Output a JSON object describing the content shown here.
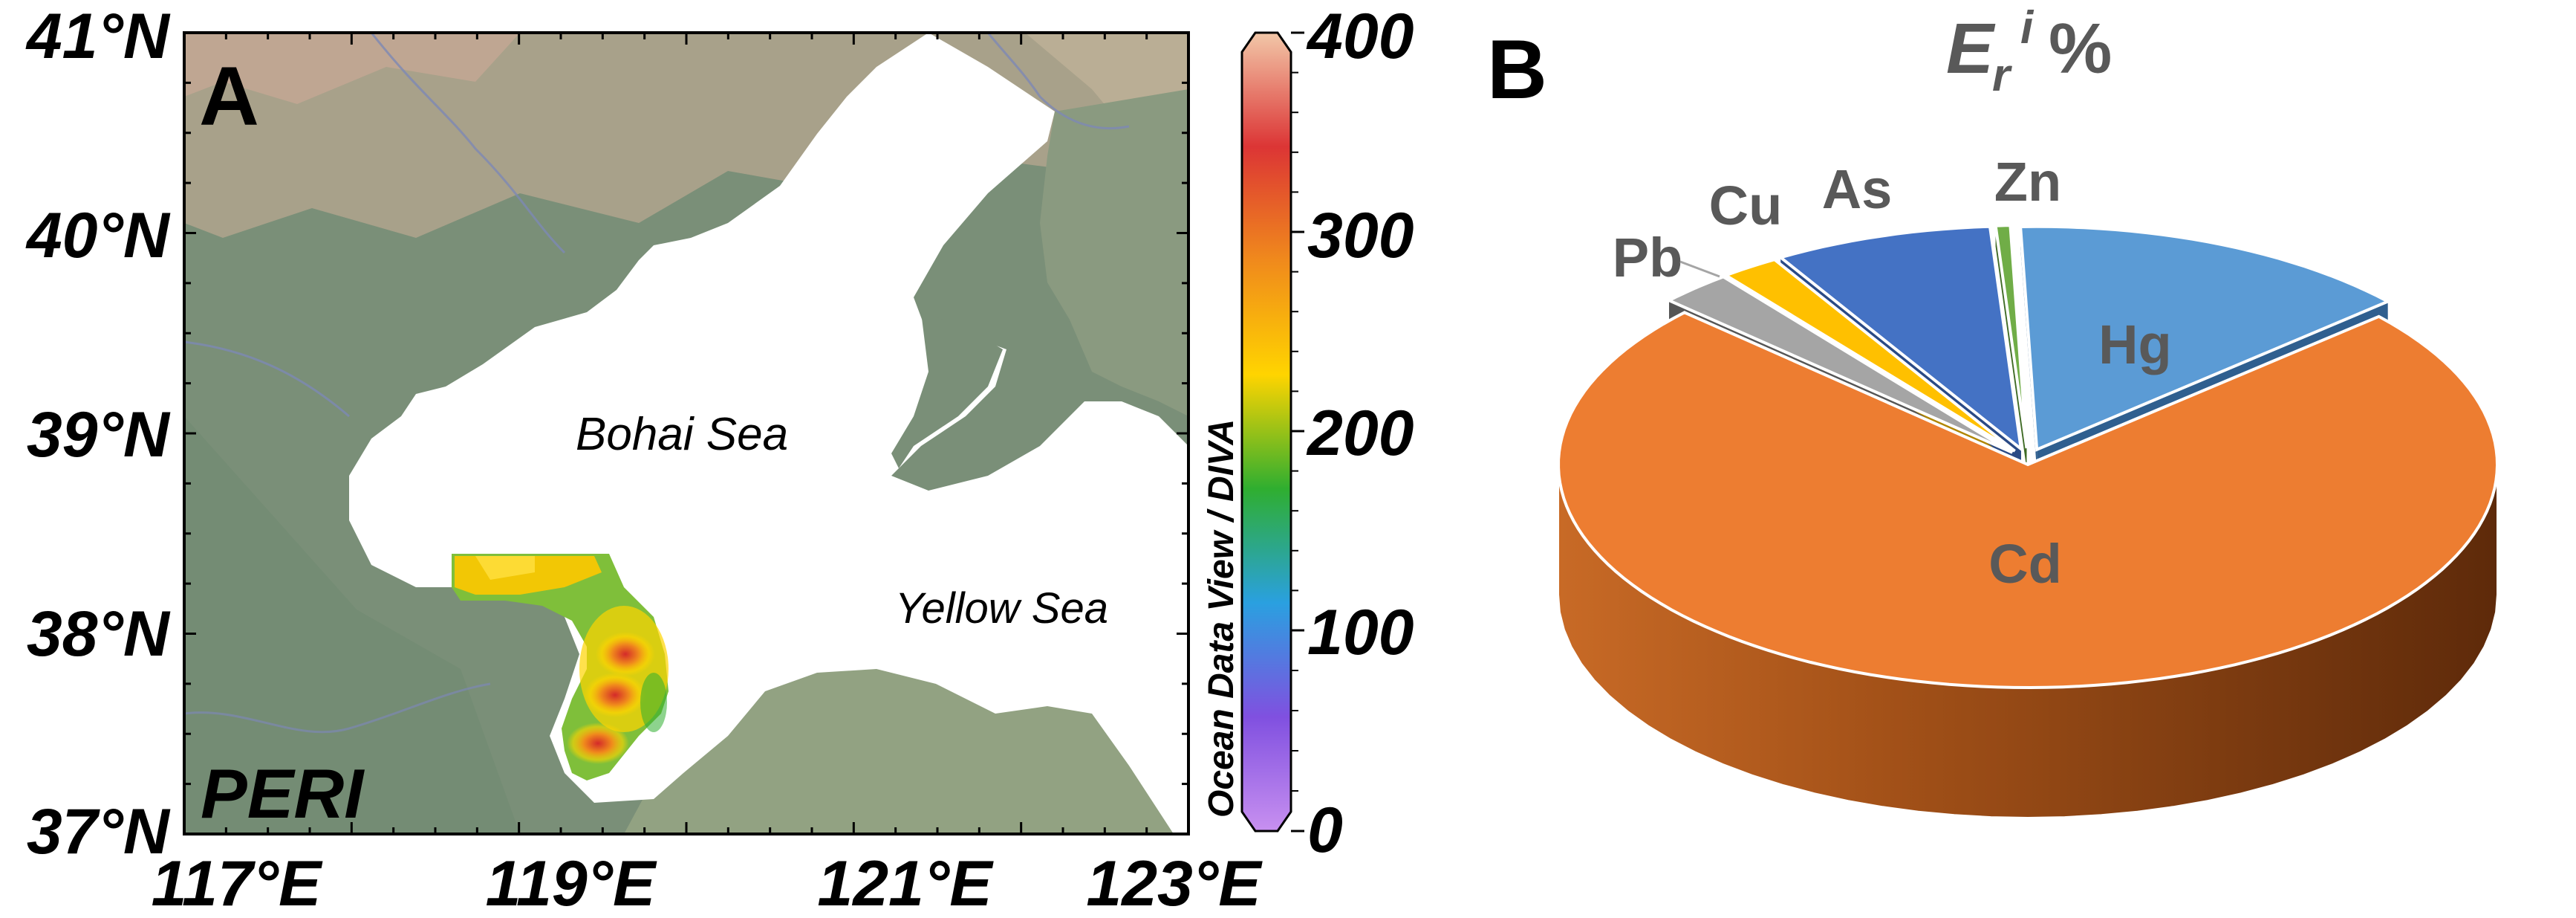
{
  "panel_a": {
    "label": "A",
    "index_name": "PERI",
    "colorbar_title": "Ocean Data View / DIVA",
    "colorbar_ticks": [
      "400",
      "300",
      "200",
      "100",
      "0"
    ],
    "lat_ticks": [
      "41°N",
      "40°N",
      "39°N",
      "38°N",
      "37°N"
    ],
    "lon_ticks": [
      "117°E",
      "119°E",
      "121°E",
      "123°E"
    ],
    "place_bohai": "Bohai Sea",
    "place_yellow": "Yellow Sea",
    "colors": {
      "land": "#7a8f78",
      "mountain": "#b8a790",
      "sea": "#ffffff",
      "colorbar": [
        "#f2c7a8",
        "#dc3535",
        "#f08a1c",
        "#ffd400",
        "#2fae30",
        "#2aa0e0",
        "#8050e0",
        "#c890f0"
      ]
    }
  },
  "panel_b": {
    "label": "B",
    "title_base": "E",
    "title_sub": "r",
    "title_sup": "i",
    "title_tail": "%"
  },
  "chart_data": {
    "type": "pie",
    "title": "Eri %",
    "slices": [
      {
        "label": "Hg",
        "value": 14.0,
        "color": "#5b9bd5",
        "dark": "#2f5f8f",
        "exploded": true
      },
      {
        "label": "Cd",
        "value": 73.5,
        "color": "#ed7d31",
        "dark": "#a84e16",
        "exploded": false
      },
      {
        "label": "Pb",
        "value": 2.5,
        "color": "#a5a5a5",
        "dark": "#555555",
        "exploded": true
      },
      {
        "label": "Cu",
        "value": 2.0,
        "color": "#ffc000",
        "dark": "#b08500",
        "exploded": true
      },
      {
        "label": "As",
        "value": 7.5,
        "color": "#4472c4",
        "dark": "#2a4a85",
        "exploded": true
      },
      {
        "label": "Zn",
        "value": 0.5,
        "color": "#70ad47",
        "dark": "#3f6b25",
        "exploded": true
      }
    ]
  }
}
